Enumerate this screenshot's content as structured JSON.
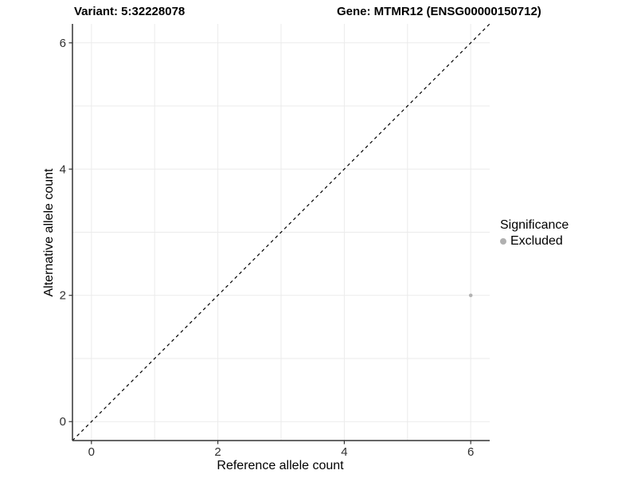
{
  "chart_data": {
    "type": "scatter",
    "title_left": "Variant: 5:32228078",
    "title_right": "Gene: MTMR12 (ENSG00000150712)",
    "xlabel": "Reference allele count",
    "ylabel": "Alternative allele count",
    "xlim": [
      -0.3,
      6.3
    ],
    "ylim": [
      -0.3,
      6.3
    ],
    "x_ticks": [
      0,
      2,
      4,
      6
    ],
    "y_ticks": [
      0,
      2,
      4,
      6
    ],
    "grid": true,
    "gridline_interval": 1,
    "series": [
      {
        "name": "Excluded",
        "color": "#b3b3b3",
        "points": [
          {
            "x": 6,
            "y": 2
          }
        ]
      }
    ],
    "identity_line": {
      "slope": 1,
      "intercept": 0,
      "style": "dashed",
      "color": "#000000"
    },
    "legend": {
      "title": "Significance",
      "position": "right",
      "entries": [
        {
          "label": "Excluded",
          "color": "#b0b0b0"
        }
      ]
    },
    "colors": {
      "grid": "#ebebeb",
      "axis": "#333333",
      "tick": "#333333"
    }
  }
}
